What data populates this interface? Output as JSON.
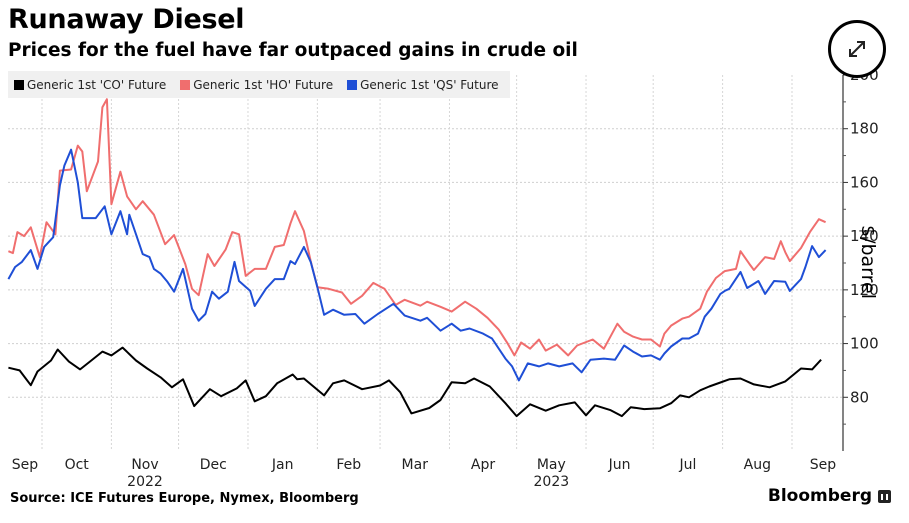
{
  "header": {
    "title": "Runaway Diesel",
    "subtitle": "Prices for the fuel have far outpaced gains in crude oil"
  },
  "footer": {
    "source": "Source: ICE Futures Europe, Nymex, Bloomberg",
    "brand": "Bloomberg"
  },
  "controls": {
    "expand_icon": "expand-arrows-icon"
  },
  "chart_data": {
    "type": "line",
    "title": "Runaway Diesel",
    "subtitle": "Prices for the fuel have far outpaced gains in crude oil",
    "xlabel": "",
    "ylabel": "$/barrel",
    "x_units": "days since 2022-10-01",
    "xlim": [
      -17,
      352
    ],
    "ylim": [
      60,
      200
    ],
    "yticks": [
      80,
      100,
      120,
      140,
      160,
      180,
      200
    ],
    "ytick_labels": [
      "80",
      "100",
      "120",
      "140",
      "160",
      "180",
      "200"
    ],
    "y_axis_side": "right",
    "grid": true,
    "legend_position": "top-left",
    "month_ticks": [
      {
        "label": "Sep",
        "start": -30,
        "end": 0
      },
      {
        "label": "Oct",
        "start": 0,
        "end": 31
      },
      {
        "label": "Nov",
        "start": 31,
        "end": 61
      },
      {
        "label": "Dec",
        "start": 61,
        "end": 92
      },
      {
        "label": "Jan",
        "start": 92,
        "end": 123
      },
      {
        "label": "Feb",
        "start": 123,
        "end": 151
      },
      {
        "label": "Mar",
        "start": 151,
        "end": 182
      },
      {
        "label": "Apr",
        "start": 182,
        "end": 212
      },
      {
        "label": "May",
        "start": 212,
        "end": 243
      },
      {
        "label": "Jun",
        "start": 243,
        "end": 273
      },
      {
        "label": "Jul",
        "start": 273,
        "end": 304
      },
      {
        "label": "Aug",
        "start": 304,
        "end": 335
      },
      {
        "label": "Sep",
        "start": 335,
        "end": 365
      }
    ],
    "year_labels": [
      {
        "label": "2022",
        "under_month": "Nov"
      },
      {
        "label": "2023",
        "under_month": "May"
      }
    ],
    "series": [
      {
        "name": "Generic 1st 'CO' Future",
        "color": "#000000",
        "x": [
          -15,
          -10,
          -5,
          -2,
          4,
          7,
          12,
          17,
          22,
          27,
          31,
          36,
          42,
          47,
          53,
          58,
          63,
          68,
          75,
          80,
          87,
          91,
          95,
          100,
          105,
          112,
          114,
          117,
          126,
          130,
          135,
          143,
          151,
          155,
          160,
          165,
          173,
          178,
          183,
          189,
          193,
          200,
          207,
          212,
          218,
          225,
          231,
          238,
          243,
          247,
          254,
          259,
          263,
          269,
          276,
          281,
          285,
          289,
          294,
          298,
          303,
          307,
          312,
          318,
          325,
          332,
          339,
          344,
          348
        ],
        "values": [
          91,
          90,
          84.5,
          89.6,
          93.7,
          97.8,
          93.3,
          90.4,
          93.7,
          97,
          95.6,
          98.5,
          93.7,
          90.7,
          87.4,
          83.7,
          86.7,
          76.7,
          83,
          80.4,
          83.3,
          86.3,
          78.5,
          80.4,
          85.2,
          88.5,
          86.7,
          87,
          80.7,
          85.2,
          86.3,
          83,
          84.4,
          86.3,
          81.9,
          74,
          76,
          79,
          85.6,
          85.2,
          87,
          84,
          77.8,
          73,
          77.4,
          75,
          77,
          78.1,
          73.3,
          77,
          75.2,
          73,
          76.3,
          75.6,
          75.9,
          77.8,
          80.7,
          80,
          82.6,
          84,
          85.5,
          86.7,
          87,
          84.8,
          83.7,
          85.9,
          90.7,
          90.4,
          94
        ]
      },
      {
        "name": "Generic 1st 'HO' Future",
        "color": "#f06e6e",
        "x": [
          -15,
          -13,
          -11,
          -8,
          -5,
          -1,
          2,
          6,
          8,
          13,
          16,
          18,
          20,
          25,
          27,
          29,
          31,
          35,
          38,
          42,
          45,
          50,
          55,
          59,
          64,
          67,
          70,
          74,
          77,
          82,
          85,
          88,
          91,
          95,
          100,
          104,
          108,
          111,
          113,
          117,
          120,
          123,
          128,
          134,
          138,
          143,
          148,
          153,
          158,
          162,
          169,
          172,
          178,
          183,
          189,
          194,
          199,
          204,
          208,
          211,
          214,
          218,
          222,
          225,
          230,
          235,
          239,
          246,
          251,
          257,
          260,
          264,
          268,
          272,
          276,
          278,
          281,
          286,
          289,
          294,
          297,
          301,
          305,
          310,
          312,
          316,
          318,
          323,
          327,
          330,
          332,
          334,
          339,
          343,
          347,
          350
        ],
        "values": [
          134.4,
          133.7,
          141.5,
          140,
          143.3,
          132.2,
          145.2,
          140.7,
          164.4,
          164.8,
          173.7,
          171.5,
          156.7,
          167.8,
          188,
          191,
          151.9,
          164,
          154.8,
          150,
          153,
          148,
          137,
          140.4,
          129.6,
          120.4,
          118,
          133.3,
          128.9,
          135,
          141.5,
          140.7,
          125.2,
          127.8,
          127.8,
          136,
          136.7,
          144.8,
          149.3,
          141.9,
          130.7,
          121,
          120.4,
          119,
          114.8,
          117.8,
          122.6,
          120.4,
          114.4,
          116.3,
          114.1,
          115.6,
          113.7,
          111.9,
          115.6,
          113,
          109.6,
          105.2,
          100,
          95.6,
          100.4,
          98.1,
          101.5,
          97.4,
          99.6,
          95.6,
          99.3,
          101.5,
          98.1,
          107.4,
          104.4,
          102.6,
          101.5,
          101.5,
          98.9,
          103.7,
          106.7,
          109.3,
          110,
          113,
          119.3,
          124.4,
          127,
          127.8,
          134.4,
          129.6,
          127.4,
          132.2,
          131.5,
          138.1,
          134,
          130.7,
          135.6,
          141.5,
          146.3,
          145.2
        ]
      },
      {
        "name": "Generic 1st 'QS' Future",
        "color": "#1f4fd6",
        "x": [
          -15,
          -12,
          -9,
          -5,
          -2,
          1,
          5,
          8,
          10,
          13,
          16,
          18,
          20,
          24,
          26,
          28,
          31,
          35,
          38,
          39,
          42,
          45,
          48,
          50,
          53,
          56,
          59,
          63,
          65,
          67,
          70,
          73,
          76,
          79,
          83,
          86,
          88,
          93,
          95,
          100,
          104,
          108,
          111,
          113,
          117,
          120,
          123,
          126,
          130,
          135,
          140,
          144,
          150,
          157,
          162,
          169,
          172,
          178,
          183,
          187,
          191,
          197,
          201,
          207,
          210,
          213,
          217,
          222,
          226,
          231,
          237,
          241,
          245,
          251,
          256,
          260,
          264,
          268,
          272,
          276,
          278,
          281,
          286,
          289,
          293,
          296,
          299,
          303,
          305,
          307,
          312,
          315,
          320,
          323,
          327,
          332,
          334,
          339,
          341,
          344,
          347,
          350
        ],
        "values": [
          124,
          128.5,
          130.4,
          134.8,
          127.8,
          136,
          139.6,
          158.9,
          166.3,
          172.2,
          160,
          146.7,
          146.7,
          146.7,
          148.9,
          151.1,
          140.7,
          149.3,
          140.7,
          148,
          140.7,
          133.3,
          132.2,
          127.8,
          126,
          123,
          119.3,
          127.8,
          120.4,
          113,
          108.5,
          111,
          119.3,
          116.7,
          119.3,
          130.4,
          123.3,
          119.6,
          114,
          120.4,
          124,
          124,
          130.7,
          129.6,
          136,
          130.4,
          121,
          110.7,
          112.6,
          110.7,
          111,
          107.4,
          111,
          114.8,
          110.4,
          108.5,
          109.6,
          104.8,
          107.4,
          104.8,
          105.6,
          103.7,
          101.9,
          94.4,
          91.5,
          86.3,
          92.6,
          91.5,
          92.6,
          91.5,
          92.6,
          89.3,
          94,
          94.4,
          94,
          99.3,
          97,
          95.2,
          95.6,
          94,
          96.3,
          98.9,
          101.9,
          101.9,
          103.7,
          110,
          113,
          118.5,
          119.6,
          120.4,
          126.7,
          120.7,
          123.3,
          118.5,
          123.3,
          123,
          119.6,
          124,
          128.5,
          136.3,
          132.2,
          134.8
        ]
      }
    ]
  }
}
